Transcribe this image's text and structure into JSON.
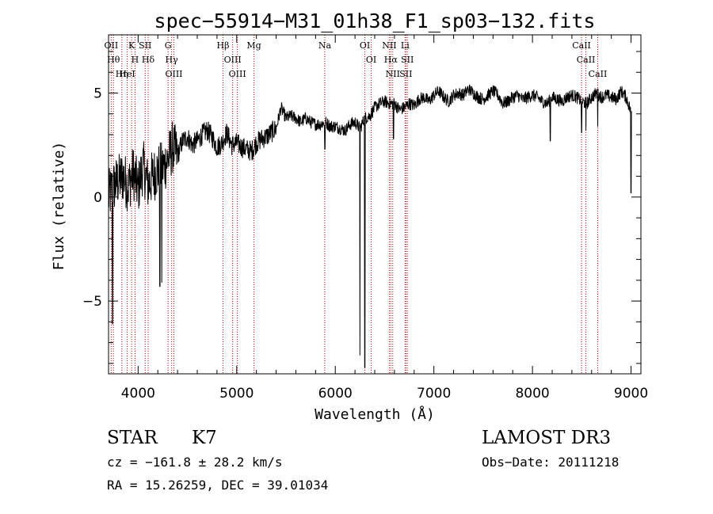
{
  "chart_data": {
    "type": "line",
    "title": "spec−55914−M31_01h38_F1_sp03−132.fits",
    "xlabel": "Wavelength (Å)",
    "ylabel": "Flux (relative)",
    "xlim": [
      3700,
      9100
    ],
    "ylim": [
      -8.5,
      7.8
    ],
    "x_ticks": [
      4000,
      5000,
      6000,
      7000,
      8000,
      9000
    ],
    "x_tick_labels": [
      "4000",
      "5000",
      "6000",
      "7000",
      "8000",
      "9000"
    ],
    "y_ticks": [
      -5,
      0,
      5
    ],
    "y_tick_labels": [
      "−5",
      "0",
      "5"
    ],
    "series": [
      {
        "name": "spectrum",
        "x": [
          3700,
          3750,
          3800,
          3850,
          3900,
          3950,
          4000,
          4050,
          4100,
          4150,
          4200,
          4250,
          4300,
          4350,
          4400,
          4450,
          4500,
          4550,
          4600,
          4650,
          4700,
          4750,
          4800,
          4850,
          4900,
          4950,
          5000,
          5050,
          5100,
          5150,
          5200,
          5250,
          5300,
          5350,
          5400,
          5450,
          5500,
          5550,
          5600,
          5650,
          5700,
          5750,
          5800,
          5850,
          5900,
          5950,
          6000,
          6050,
          6100,
          6150,
          6200,
          6250,
          6300,
          6350,
          6400,
          6450,
          6500,
          6550,
          6600,
          6650,
          6700,
          6750,
          6800,
          6850,
          6900,
          6950,
          7000,
          7050,
          7100,
          7150,
          7200,
          7250,
          7300,
          7350,
          7400,
          7450,
          7500,
          7550,
          7600,
          7650,
          7700,
          7750,
          7800,
          7850,
          7900,
          7950,
          8000,
          8050,
          8100,
          8150,
          8200,
          8250,
          8300,
          8350,
          8400,
          8450,
          8500,
          8550,
          8600,
          8650,
          8700,
          8750,
          8800,
          8850,
          8900,
          8950,
          9000
        ],
        "y": [
          0.0,
          0.5,
          0.8,
          1.0,
          0.5,
          1.2,
          0.4,
          1.5,
          0.6,
          1.0,
          1.3,
          1.4,
          1.8,
          2.4,
          2.0,
          2.7,
          2.9,
          2.5,
          2.7,
          3.0,
          3.2,
          2.9,
          2.4,
          2.6,
          3.1,
          2.5,
          2.6,
          2.4,
          2.3,
          2.2,
          2.6,
          2.8,
          2.9,
          3.1,
          3.3,
          4.3,
          3.8,
          3.9,
          3.8,
          3.6,
          3.8,
          3.6,
          3.5,
          3.5,
          3.6,
          3.4,
          3.4,
          3.3,
          3.2,
          3.5,
          3.6,
          3.3,
          3.8,
          3.9,
          4.3,
          4.5,
          4.6,
          4.5,
          4.5,
          4.2,
          4.3,
          4.5,
          4.4,
          4.7,
          4.8,
          4.6,
          4.9,
          5.1,
          4.8,
          4.6,
          4.9,
          5.0,
          4.9,
          5.2,
          5.0,
          4.8,
          4.7,
          4.9,
          5.1,
          4.9,
          4.5,
          4.6,
          4.8,
          4.9,
          4.7,
          4.8,
          4.9,
          4.8,
          4.6,
          4.5,
          4.8,
          4.7,
          4.6,
          4.8,
          4.9,
          4.8,
          4.6,
          4.5,
          4.8,
          5.0,
          4.8,
          4.9,
          4.8,
          4.7,
          5.1,
          4.8,
          4.1
        ],
        "features": [
          {
            "x": 3740,
            "y": -6.1
          },
          {
            "x": 4220,
            "y": -4.3
          },
          {
            "x": 4240,
            "y": -4.1
          },
          {
            "x": 5895,
            "y": 2.3
          },
          {
            "x": 6250,
            "y": -7.6
          },
          {
            "x": 6300,
            "y": -8.2
          },
          {
            "x": 6590,
            "y": 2.8
          },
          {
            "x": 8180,
            "y": 2.7
          },
          {
            "x": 8498,
            "y": 3.1
          },
          {
            "x": 8542,
            "y": 3.2
          },
          {
            "x": 8662,
            "y": 3.4
          },
          {
            "x": 9000,
            "y": 0.2
          }
        ],
        "color": "#000000"
      }
    ],
    "lines": [
      {
        "wl": 3727,
        "label": "OII"
      },
      {
        "wl": 3750,
        "label": "Hθ"
      },
      {
        "wl": 3835,
        "label": "Hη"
      },
      {
        "wl": 3889,
        "label": "HeI"
      },
      {
        "wl": 3934,
        "label": "K"
      },
      {
        "wl": 3969,
        "label": "H"
      },
      {
        "wl": 4072,
        "label": "SII"
      },
      {
        "wl": 4102,
        "label": "Hδ"
      },
      {
        "wl": 4304,
        "label": "G"
      },
      {
        "wl": 4340,
        "label": "Hγ"
      },
      {
        "wl": 4363,
        "label": "OIII"
      },
      {
        "wl": 4861,
        "label": "Hβ"
      },
      {
        "wl": 4959,
        "label": "OIII"
      },
      {
        "wl": 5007,
        "label": "OIII"
      },
      {
        "wl": 5175,
        "label": "Mg"
      },
      {
        "wl": 5893,
        "label": "Na"
      },
      {
        "wl": 6300,
        "label": "OI"
      },
      {
        "wl": 6364,
        "label": "OI"
      },
      {
        "wl": 6548,
        "label": "NII"
      },
      {
        "wl": 6563,
        "label": "Hα"
      },
      {
        "wl": 6583,
        "label": "NII"
      },
      {
        "wl": 6708,
        "label": "Li"
      },
      {
        "wl": 6716,
        "label": "SII"
      },
      {
        "wl": 6731,
        "label": "SII"
      },
      {
        "wl": 8498,
        "label": "CaII"
      },
      {
        "wl": 8542,
        "label": "CaII"
      },
      {
        "wl": 8662,
        "label": "CaII"
      }
    ],
    "line_color": "#cc0000",
    "grid": false
  },
  "info": {
    "class_label": "STAR",
    "subclass": "K7",
    "survey": "LAMOST DR3",
    "cz_text": "cz = −161.8 ± 28.2 km/s",
    "obs_date": "Obs−Date: 20111218",
    "radec_text": "RA =  15.26259, DEC =  39.01034"
  }
}
